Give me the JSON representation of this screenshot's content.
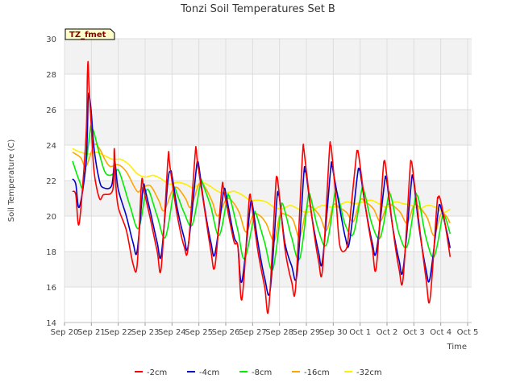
{
  "chart_data": {
    "type": "line",
    "title": "Tonzi Soil Temperatures Set B",
    "xlabel": "Time",
    "ylabel": "Soil Temperature (C)",
    "badge": "TZ_fmet",
    "ylim": [
      14,
      30
    ],
    "yticks": [
      14,
      16,
      18,
      20,
      22,
      24,
      26,
      28,
      30
    ],
    "xlim": [
      0,
      15.15
    ],
    "xticks": [
      {
        "v": 0,
        "label": "Sep 20"
      },
      {
        "v": 1,
        "label": "Sep 21"
      },
      {
        "v": 2,
        "label": "Sep 22"
      },
      {
        "v": 3,
        "label": "Sep 23"
      },
      {
        "v": 4,
        "label": "Sep 24"
      },
      {
        "v": 5,
        "label": "Sep 25"
      },
      {
        "v": 6,
        "label": "Sep 26"
      },
      {
        "v": 7,
        "label": "Sep 27"
      },
      {
        "v": 8,
        "label": "Sep 28"
      },
      {
        "v": 9,
        "label": "Sep 29"
      },
      {
        "v": 10,
        "label": "Sep 30"
      },
      {
        "v": 11,
        "label": "Oct 1"
      },
      {
        "v": 12,
        "label": "Oct 2"
      },
      {
        "v": 13,
        "label": "Oct 3"
      },
      {
        "v": 14,
        "label": "Oct 4"
      },
      {
        "v": 15,
        "label": "Oct 5"
      }
    ],
    "grid": true,
    "legend_position": "bottom",
    "series": [
      {
        "name": "-2cm",
        "color": "#ff0000",
        "x": [
          0.3,
          0.42,
          0.55,
          0.8,
          0.85,
          0.88,
          0.91,
          1.0,
          1.1,
          1.3,
          1.45,
          1.8,
          1.85,
          1.9,
          2.0,
          2.3,
          2.55,
          2.7,
          2.85,
          2.9,
          2.95,
          3.2,
          3.45,
          3.6,
          3.85,
          3.9,
          3.95,
          4.2,
          4.45,
          4.6,
          4.85,
          4.9,
          4.95,
          5.2,
          5.45,
          5.6,
          5.85,
          5.9,
          5.95,
          6.3,
          6.45,
          6.6,
          6.85,
          6.9,
          6.95,
          7.2,
          7.45,
          7.6,
          7.85,
          7.9,
          7.95,
          8.2,
          8.45,
          8.6,
          8.85,
          8.9,
          8.95,
          9.2,
          9.45,
          9.6,
          9.85,
          9.9,
          9.95,
          10.1,
          10.25,
          10.5,
          10.6,
          10.85,
          10.9,
          10.95,
          11.2,
          11.45,
          11.6,
          11.85,
          11.9,
          11.95,
          12.2,
          12.45,
          12.6,
          12.85,
          12.9,
          12.95,
          13.2,
          13.45,
          13.6,
          13.85,
          13.9,
          13.95,
          14.05,
          14.2,
          14.35
        ],
        "y": [
          21.4,
          21.2,
          19.6,
          24.5,
          27.8,
          28.7,
          27.4,
          25.0,
          22.5,
          21.0,
          21.2,
          21.5,
          23.8,
          22.0,
          20.5,
          19.2,
          17.3,
          17.2,
          21.5,
          22.1,
          21.5,
          19.8,
          18.0,
          17.1,
          23.2,
          23.1,
          22.5,
          20.0,
          18.3,
          18.2,
          23.3,
          23.8,
          23.0,
          20.5,
          18.0,
          17.2,
          21.5,
          21.7,
          21.3,
          18.6,
          18.3,
          15.3,
          20.5,
          21.2,
          20.8,
          18.0,
          16.0,
          14.8,
          21.5,
          22.1,
          21.8,
          18.2,
          16.3,
          16.0,
          23.3,
          23.8,
          23.2,
          20.0,
          17.5,
          17.0,
          23.5,
          24.0,
          23.5,
          21.0,
          18.3,
          18.2,
          19.5,
          23.3,
          23.6,
          23.4,
          20.5,
          18.2,
          17.1,
          22.5,
          23.0,
          22.8,
          19.5,
          17.0,
          16.5,
          22.5,
          23.0,
          22.7,
          19.5,
          16.5,
          15.3,
          20.5,
          21.0,
          21.1,
          20.5,
          19.2,
          17.7
        ]
      },
      {
        "name": "-4cm",
        "color": "#0000cc",
        "x": [
          0.3,
          0.42,
          0.55,
          0.8,
          0.88,
          0.92,
          1.0,
          1.1,
          1.3,
          1.45,
          1.75,
          1.85,
          1.9,
          2.0,
          2.3,
          2.55,
          2.7,
          2.9,
          2.95,
          3.0,
          3.2,
          3.45,
          3.6,
          3.85,
          3.95,
          4.0,
          4.2,
          4.45,
          4.6,
          4.9,
          4.95,
          5.0,
          5.2,
          5.45,
          5.6,
          5.9,
          5.95,
          6.0,
          6.3,
          6.45,
          6.6,
          6.9,
          6.95,
          7.0,
          7.2,
          7.45,
          7.65,
          7.9,
          7.95,
          8.0,
          8.2,
          8.45,
          8.65,
          8.9,
          8.95,
          9.0,
          9.2,
          9.45,
          9.6,
          9.9,
          9.95,
          10.0,
          10.2,
          10.45,
          10.6,
          10.9,
          10.95,
          11.0,
          11.2,
          11.45,
          11.6,
          11.9,
          11.95,
          12.0,
          12.2,
          12.45,
          12.6,
          12.9,
          12.95,
          13.0,
          13.2,
          13.45,
          13.6,
          13.9,
          13.95,
          14.0,
          14.2,
          14.35
        ],
        "y": [
          22.1,
          21.8,
          20.5,
          23.0,
          26.5,
          26.8,
          25.8,
          23.8,
          22.0,
          21.6,
          21.7,
          23.0,
          22.8,
          21.5,
          20.0,
          18.5,
          18.0,
          21.3,
          21.8,
          21.5,
          20.2,
          18.5,
          17.8,
          22.0,
          22.5,
          22.3,
          20.4,
          18.8,
          18.3,
          22.6,
          23.0,
          22.8,
          20.6,
          18.5,
          17.9,
          21.2,
          21.5,
          21.3,
          18.9,
          18.3,
          16.3,
          20.4,
          20.8,
          20.6,
          18.5,
          16.5,
          15.8,
          20.9,
          21.2,
          21.0,
          18.5,
          17.2,
          16.7,
          22.3,
          22.5,
          22.3,
          20.0,
          18.0,
          17.5,
          22.6,
          22.8,
          22.5,
          20.8,
          18.8,
          18.5,
          22.3,
          22.6,
          22.5,
          20.5,
          18.5,
          18.0,
          21.8,
          22.2,
          21.9,
          19.5,
          17.5,
          17.0,
          21.8,
          22.2,
          21.9,
          19.3,
          17.0,
          16.5,
          20.2,
          20.6,
          20.5,
          19.3,
          18.2
        ]
      },
      {
        "name": "-8cm",
        "color": "#00ee00",
        "x": [
          0.3,
          0.55,
          0.7,
          0.95,
          1.0,
          1.1,
          1.3,
          1.5,
          1.7,
          1.9,
          2.0,
          2.15,
          2.45,
          2.75,
          3.0,
          3.1,
          3.2,
          3.45,
          3.75,
          4.05,
          4.1,
          4.2,
          4.45,
          4.75,
          5.05,
          5.1,
          5.2,
          5.45,
          5.75,
          6.05,
          6.1,
          6.2,
          6.45,
          6.7,
          7.05,
          7.1,
          7.2,
          7.45,
          7.75,
          8.05,
          8.1,
          8.2,
          8.45,
          8.75,
          9.05,
          9.1,
          9.2,
          9.45,
          9.75,
          10.05,
          10.1,
          10.2,
          10.45,
          10.75,
          11.05,
          11.1,
          11.2,
          11.45,
          11.75,
          12.05,
          12.1,
          12.2,
          12.45,
          12.75,
          13.05,
          13.1,
          13.2,
          13.45,
          13.75,
          14.05,
          14.1,
          14.2,
          14.35
        ],
        "y": [
          23.1,
          22.0,
          21.8,
          24.8,
          25.0,
          24.7,
          23.5,
          22.5,
          22.3,
          22.5,
          22.6,
          22.0,
          20.5,
          19.3,
          21.2,
          21.5,
          21.2,
          20.0,
          18.8,
          21.3,
          21.6,
          21.2,
          20.2,
          19.5,
          21.8,
          22.0,
          21.6,
          20.5,
          18.9,
          21.0,
          21.2,
          20.8,
          19.2,
          17.6,
          20.0,
          20.2,
          19.8,
          18.5,
          17.0,
          20.3,
          20.7,
          20.3,
          18.8,
          17.6,
          20.9,
          21.3,
          20.8,
          19.2,
          18.4,
          21.2,
          21.5,
          21.0,
          19.5,
          19.0,
          21.4,
          21.6,
          21.1,
          19.5,
          18.8,
          21.1,
          21.3,
          20.8,
          19.0,
          18.3,
          21.0,
          21.2,
          20.8,
          18.8,
          17.7,
          19.9,
          20.1,
          19.8,
          19.0
        ]
      },
      {
        "name": "-16cm",
        "color": "#ffa500",
        "x": [
          0.3,
          0.6,
          0.8,
          1.1,
          1.3,
          1.5,
          1.7,
          2.0,
          2.3,
          2.7,
          2.9,
          3.2,
          3.5,
          3.7,
          4.0,
          4.2,
          4.5,
          4.7,
          5.0,
          5.2,
          5.5,
          5.7,
          6.0,
          6.2,
          6.5,
          6.75,
          7.0,
          7.2,
          7.5,
          7.8,
          8.0,
          8.2,
          8.5,
          8.75,
          9.0,
          9.2,
          9.5,
          9.75,
          10.0,
          10.2,
          10.5,
          10.75,
          11.0,
          11.2,
          11.5,
          11.75,
          12.0,
          12.2,
          12.5,
          12.75,
          13.0,
          13.2,
          13.5,
          13.75,
          14.0,
          14.2,
          14.35
        ],
        "y": [
          23.6,
          23.3,
          22.8,
          24.0,
          23.8,
          23.2,
          22.8,
          22.9,
          22.5,
          21.4,
          21.6,
          21.7,
          20.9,
          20.3,
          21.4,
          21.6,
          21.0,
          20.5,
          21.8,
          21.7,
          20.8,
          20.0,
          20.9,
          20.9,
          20.2,
          19.1,
          20.0,
          20.1,
          19.6,
          18.6,
          20.0,
          20.1,
          19.8,
          18.8,
          20.4,
          20.5,
          20.0,
          19.2,
          20.6,
          20.5,
          20.2,
          19.7,
          20.9,
          20.8,
          20.4,
          19.7,
          20.6,
          20.6,
          20.2,
          19.6,
          20.6,
          20.5,
          19.9,
          18.9,
          20.1,
          20.0,
          19.6
        ]
      },
      {
        "name": "-32cm",
        "color": "#ffee00",
        "x": [
          0.3,
          0.6,
          0.9,
          1.2,
          1.5,
          1.8,
          2.1,
          2.4,
          2.7,
          3.0,
          3.3,
          3.6,
          3.9,
          4.2,
          4.5,
          4.8,
          5.1,
          5.4,
          5.7,
          6.0,
          6.3,
          6.6,
          6.9,
          7.2,
          7.5,
          7.8,
          8.1,
          8.4,
          8.7,
          9.0,
          9.3,
          9.6,
          9.9,
          10.2,
          10.5,
          10.8,
          11.1,
          11.4,
          11.7,
          12.0,
          12.3,
          12.6,
          12.9,
          13.2,
          13.5,
          13.8,
          14.1,
          14.35
        ],
        "y": [
          23.8,
          23.6,
          23.5,
          23.6,
          23.4,
          23.2,
          23.2,
          22.9,
          22.4,
          22.2,
          22.3,
          22.1,
          21.8,
          21.9,
          21.8,
          21.6,
          21.9,
          21.7,
          21.4,
          21.3,
          21.4,
          21.2,
          20.9,
          20.9,
          20.8,
          20.5,
          20.4,
          20.6,
          20.4,
          20.2,
          20.4,
          20.6,
          20.5,
          20.6,
          20.8,
          20.7,
          20.8,
          20.9,
          20.7,
          20.5,
          20.8,
          20.7,
          20.6,
          20.4,
          20.6,
          20.5,
          20.2,
          20.4
        ]
      }
    ]
  }
}
